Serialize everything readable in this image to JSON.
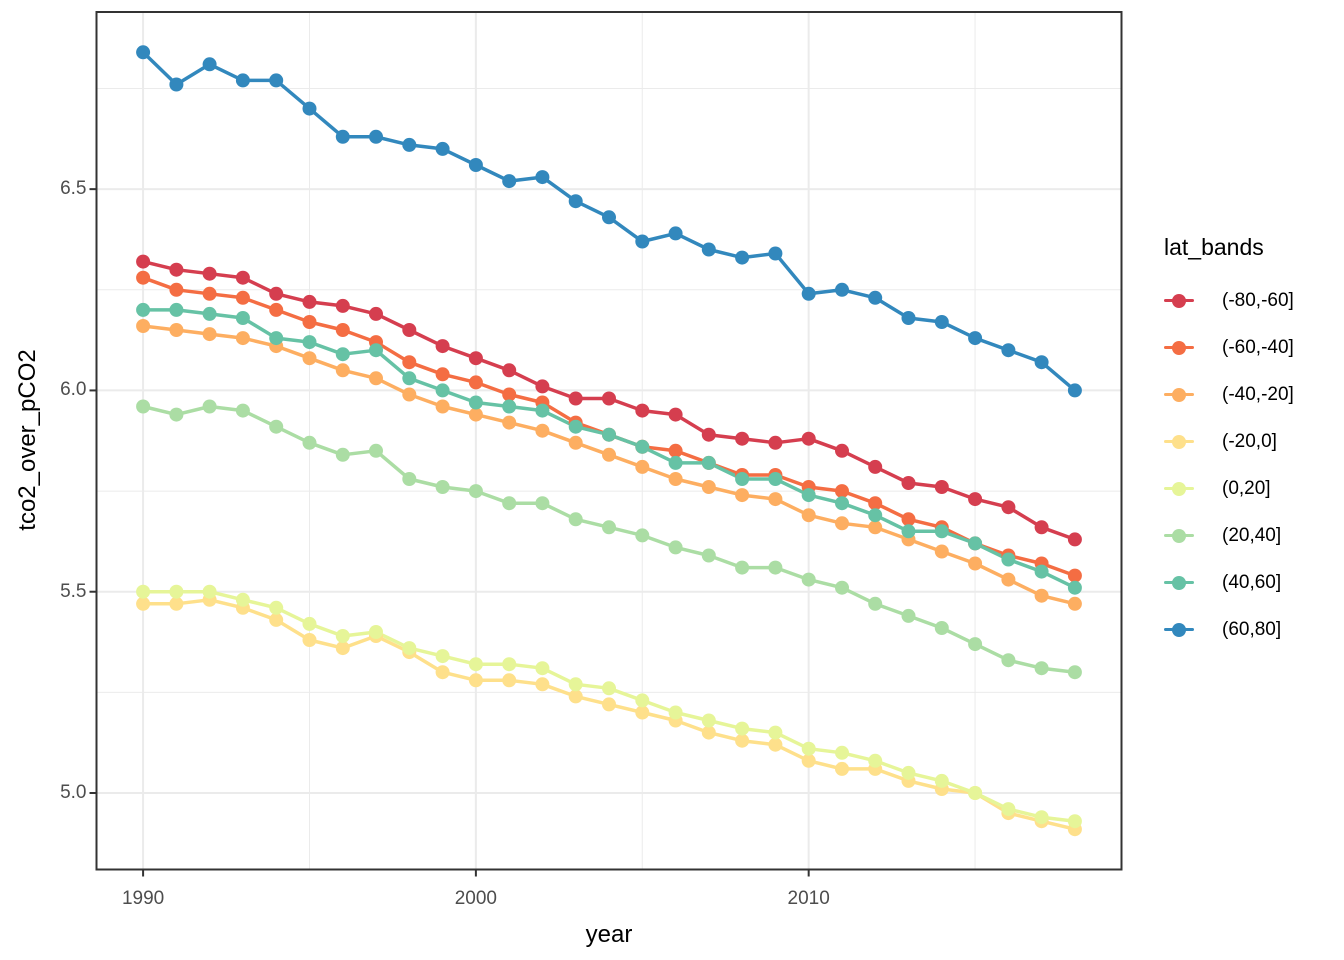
{
  "chart_data": {
    "type": "line",
    "title": "",
    "xlabel": "year",
    "ylabel": "tco2_over_pCO2",
    "legend_title": "lat_bands",
    "legend_position": "right",
    "grid": true,
    "x": [
      1990,
      1991,
      1992,
      1993,
      1994,
      1995,
      1996,
      1997,
      1998,
      1999,
      2000,
      2001,
      2002,
      2003,
      2004,
      2005,
      2006,
      2007,
      2008,
      2009,
      2010,
      2011,
      2012,
      2013,
      2014,
      2015,
      2016,
      2017,
      2018
    ],
    "xlim": [
      1988.6,
      2019.4
    ],
    "ylim": [
      4.81,
      6.94
    ],
    "x_ticks": {
      "major": [
        1990,
        2000,
        2010
      ],
      "major_labels": [
        "1990",
        "2000",
        "2010"
      ],
      "minor": [
        1995,
        2005,
        2015
      ]
    },
    "y_ticks": {
      "major": [
        5.0,
        5.5,
        6.0,
        6.5
      ],
      "major_labels": [
        "5.0",
        "5.5",
        "6.0",
        "6.5"
      ],
      "minor": [
        5.25,
        5.75,
        6.25,
        6.75
      ]
    },
    "series": [
      {
        "name": "(-80,-60]",
        "color": "#D53E4F",
        "values": [
          6.32,
          6.3,
          6.29,
          6.28,
          6.24,
          6.22,
          6.21,
          6.19,
          6.15,
          6.11,
          6.08,
          6.05,
          6.01,
          5.98,
          5.98,
          5.95,
          5.94,
          5.89,
          5.88,
          5.87,
          5.88,
          5.85,
          5.81,
          5.77,
          5.76,
          5.73,
          5.71,
          5.66,
          5.63
        ]
      },
      {
        "name": "(-60,-40]",
        "color": "#F46D43",
        "values": [
          6.28,
          6.25,
          6.24,
          6.23,
          6.2,
          6.17,
          6.15,
          6.12,
          6.07,
          6.04,
          6.02,
          5.99,
          5.97,
          5.92,
          5.89,
          5.86,
          5.85,
          5.82,
          5.79,
          5.79,
          5.76,
          5.75,
          5.72,
          5.68,
          5.66,
          5.62,
          5.59,
          5.57,
          5.54
        ]
      },
      {
        "name": "(-40,-20]",
        "color": "#FDAE61",
        "values": [
          6.16,
          6.15,
          6.14,
          6.13,
          6.11,
          6.08,
          6.05,
          6.03,
          5.99,
          5.96,
          5.94,
          5.92,
          5.9,
          5.87,
          5.84,
          5.81,
          5.78,
          5.76,
          5.74,
          5.73,
          5.69,
          5.67,
          5.66,
          5.63,
          5.6,
          5.57,
          5.53,
          5.49,
          5.47
        ]
      },
      {
        "name": "(-20,0]",
        "color": "#FEE08B",
        "values": [
          5.47,
          5.47,
          5.48,
          5.46,
          5.43,
          5.38,
          5.36,
          5.39,
          5.35,
          5.3,
          5.28,
          5.28,
          5.27,
          5.24,
          5.22,
          5.2,
          5.18,
          5.15,
          5.13,
          5.12,
          5.08,
          5.06,
          5.06,
          5.03,
          5.01,
          5.0,
          4.95,
          4.93,
          4.91
        ]
      },
      {
        "name": "(0,20]",
        "color": "#E6F598",
        "values": [
          5.5,
          5.5,
          5.5,
          5.48,
          5.46,
          5.42,
          5.39,
          5.4,
          5.36,
          5.34,
          5.32,
          5.32,
          5.31,
          5.27,
          5.26,
          5.23,
          5.2,
          5.18,
          5.16,
          5.15,
          5.11,
          5.1,
          5.08,
          5.05,
          5.03,
          5.0,
          4.96,
          4.94,
          4.93
        ]
      },
      {
        "name": "(20,40]",
        "color": "#ABDDA4",
        "values": [
          5.96,
          5.94,
          5.96,
          5.95,
          5.91,
          5.87,
          5.84,
          5.85,
          5.78,
          5.76,
          5.75,
          5.72,
          5.72,
          5.68,
          5.66,
          5.64,
          5.61,
          5.59,
          5.56,
          5.56,
          5.53,
          5.51,
          5.47,
          5.44,
          5.41,
          5.37,
          5.33,
          5.31,
          5.3
        ]
      },
      {
        "name": "(40,60]",
        "color": "#66C2A5",
        "values": [
          6.2,
          6.2,
          6.19,
          6.18,
          6.13,
          6.12,
          6.09,
          6.1,
          6.03,
          6.0,
          5.97,
          5.96,
          5.95,
          5.91,
          5.89,
          5.86,
          5.82,
          5.82,
          5.78,
          5.78,
          5.74,
          5.72,
          5.69,
          5.65,
          5.65,
          5.62,
          5.58,
          5.55,
          5.51
        ]
      },
      {
        "name": "(60,80]",
        "color": "#3288BD",
        "values": [
          6.84,
          6.76,
          6.81,
          6.77,
          6.77,
          6.7,
          6.63,
          6.63,
          6.61,
          6.6,
          6.56,
          6.52,
          6.53,
          6.47,
          6.43,
          6.37,
          6.39,
          6.35,
          6.33,
          6.34,
          6.24,
          6.25,
          6.23,
          6.18,
          6.17,
          6.13,
          6.1,
          6.07,
          6.0
        ]
      }
    ],
    "style": {
      "background": "#FFFFFF",
      "panel_background": "#FFFFFF",
      "grid_color": "#EBEBEB",
      "panel_border_color": "#333333",
      "tick_color": "#333333",
      "tick_label_color": "#4D4D4D",
      "point_radius": 7,
      "line_width": 3.5
    }
  }
}
